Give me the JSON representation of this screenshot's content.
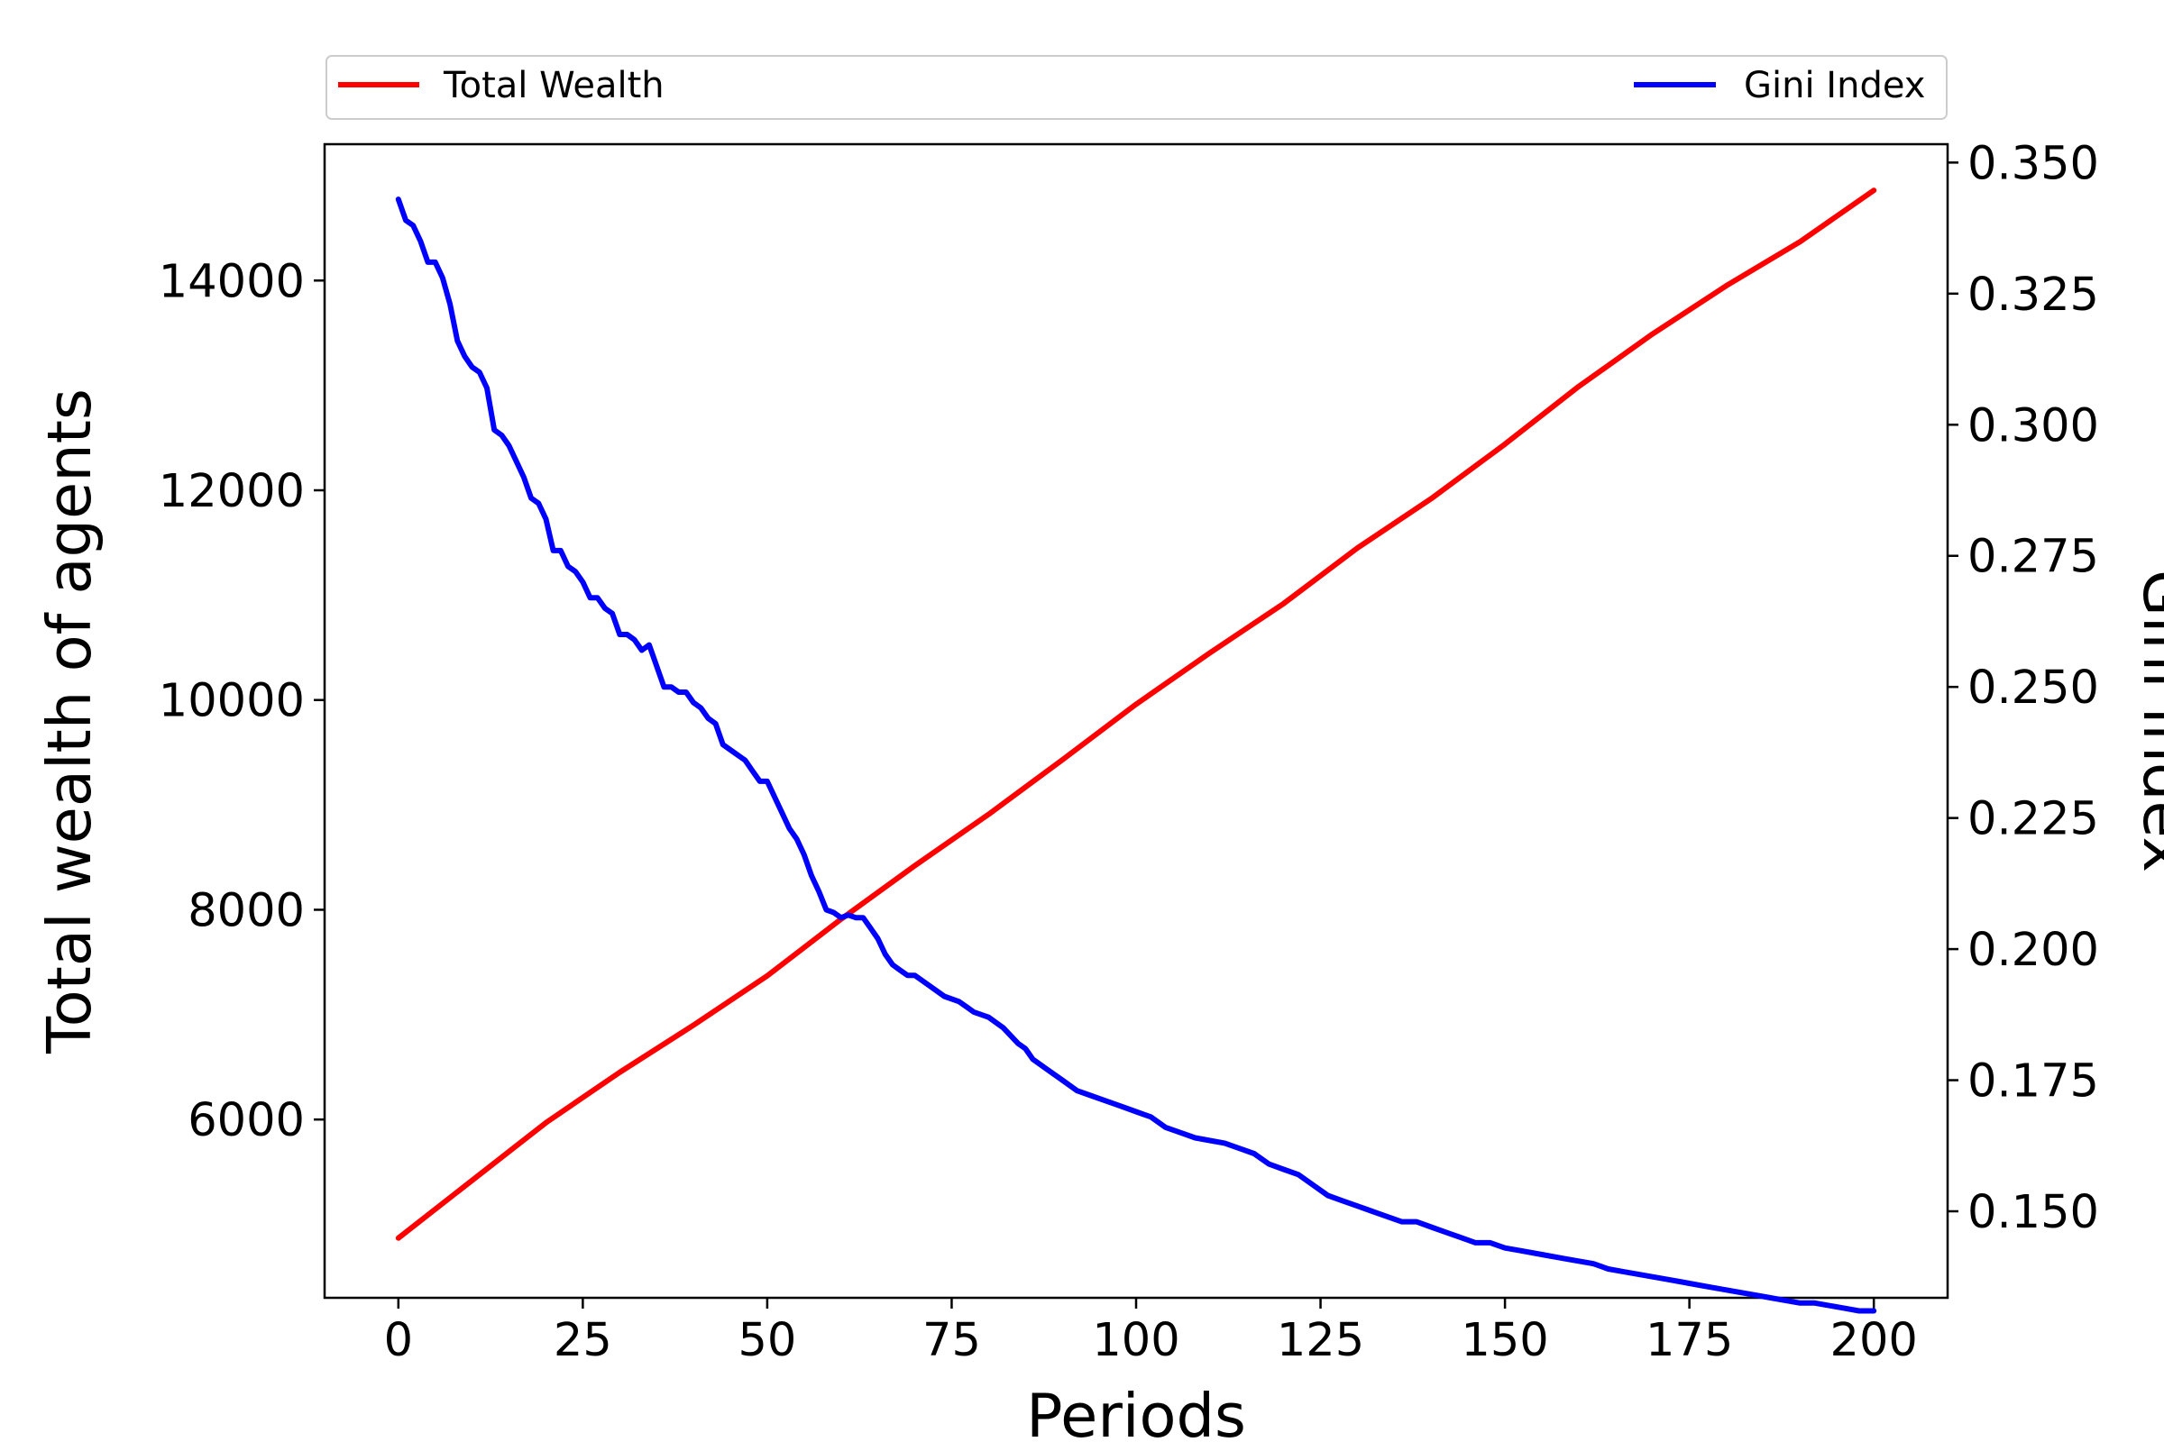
{
  "chart_data": {
    "type": "line",
    "xlabel": "Periods",
    "ylabel_left": "Total wealth of agents",
    "ylabel_right": "Gini index",
    "xlim": [
      -10,
      210
    ],
    "ylim_left": [
      4300,
      15300
    ],
    "ylim_right": [
      0.1335,
      0.3535
    ],
    "xticks": [
      0,
      25,
      50,
      75,
      100,
      125,
      150,
      175,
      200
    ],
    "yticks_left": [
      6000,
      8000,
      10000,
      12000,
      14000
    ],
    "yticks_right": [
      0.15,
      0.175,
      0.2,
      0.225,
      0.25,
      0.275,
      0.3,
      0.325,
      0.35
    ],
    "ytick_labels_right": [
      "0.150",
      "0.175",
      "0.200",
      "0.225",
      "0.250",
      "0.275",
      "0.300",
      "0.325",
      "0.350"
    ],
    "legend": {
      "placement": "top, above plot"
    },
    "grid": false,
    "series": [
      {
        "name": "Total Wealth",
        "axis": "left",
        "color": "#ff0000",
        "x": [
          0,
          10,
          20,
          30,
          40,
          50,
          60,
          70,
          80,
          90,
          100,
          110,
          120,
          130,
          140,
          150,
          160,
          170,
          180,
          190,
          200
        ],
        "values": [
          4870,
          5420,
          5970,
          6450,
          6900,
          7370,
          7910,
          8420,
          8910,
          9430,
          9960,
          10450,
          10920,
          11450,
          11920,
          12440,
          12990,
          13490,
          13950,
          14370,
          14860
        ]
      },
      {
        "name": "Gini Index",
        "axis": "right",
        "color": "#0000ff",
        "x": [
          0,
          1,
          2,
          3,
          4,
          5,
          6,
          7,
          8,
          9,
          10,
          11,
          12,
          13,
          14,
          15,
          16,
          17,
          18,
          19,
          20,
          21,
          22,
          23,
          24,
          25,
          26,
          27,
          28,
          29,
          30,
          31,
          32,
          33,
          34,
          35,
          36,
          37,
          38,
          39,
          40,
          41,
          42,
          43,
          44,
          45,
          46,
          47,
          48,
          49,
          50,
          51,
          52,
          53,
          54,
          55,
          56,
          57,
          58,
          59,
          60,
          61,
          62,
          63,
          64,
          65,
          66,
          67,
          68,
          69,
          70,
          72,
          74,
          76,
          77,
          78,
          80,
          82,
          84,
          85,
          86,
          88,
          90,
          92,
          94,
          96,
          98,
          100,
          102,
          104,
          106,
          108,
          110,
          112,
          114,
          116,
          118,
          120,
          122,
          124,
          126,
          128,
          130,
          132,
          134,
          136,
          138,
          140,
          142,
          144,
          146,
          148,
          150,
          152,
          154,
          156,
          158,
          160,
          162,
          164,
          166,
          168,
          170,
          172,
          174,
          176,
          178,
          180,
          182,
          184,
          186,
          188,
          190,
          192,
          194,
          196,
          198,
          200
        ],
        "values": [
          0.343,
          0.339,
          0.338,
          0.335,
          0.331,
          0.331,
          0.328,
          0.323,
          0.316,
          0.313,
          0.311,
          0.31,
          0.307,
          0.299,
          0.298,
          0.296,
          0.293,
          0.29,
          0.286,
          0.285,
          0.282,
          0.276,
          0.276,
          0.273,
          0.272,
          0.27,
          0.267,
          0.267,
          0.265,
          0.264,
          0.26,
          0.26,
          0.259,
          0.257,
          0.258,
          0.254,
          0.25,
          0.25,
          0.249,
          0.249,
          0.247,
          0.246,
          0.244,
          0.243,
          0.239,
          0.238,
          0.237,
          0.236,
          0.234,
          0.232,
          0.232,
          0.229,
          0.226,
          0.223,
          0.221,
          0.218,
          0.214,
          0.211,
          0.2075,
          0.207,
          0.206,
          0.2065,
          0.206,
          0.206,
          0.204,
          0.202,
          0.199,
          0.197,
          0.196,
          0.195,
          0.195,
          0.193,
          0.191,
          0.19,
          0.189,
          0.188,
          0.187,
          0.185,
          0.182,
          0.181,
          0.179,
          0.177,
          0.175,
          0.173,
          0.172,
          0.171,
          0.17,
          0.169,
          0.168,
          0.166,
          0.165,
          0.164,
          0.1635,
          0.163,
          0.162,
          0.161,
          0.159,
          0.158,
          0.157,
          0.155,
          0.153,
          0.152,
          0.151,
          0.15,
          0.149,
          0.148,
          0.148,
          0.147,
          0.146,
          0.145,
          0.144,
          0.144,
          0.143,
          0.1425,
          0.142,
          0.1415,
          0.141,
          0.1405,
          0.14,
          0.139,
          0.1385,
          0.138,
          0.1375,
          0.137,
          0.1365,
          0.136,
          0.1355,
          0.135,
          0.1345,
          0.134,
          0.1335,
          0.133,
          0.1325,
          0.1325,
          0.132,
          0.1315,
          0.131,
          0.131
        ]
      }
    ]
  }
}
